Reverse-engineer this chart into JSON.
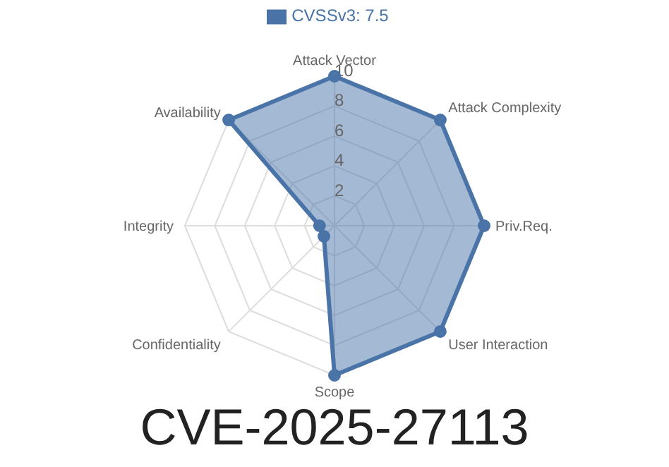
{
  "chart_data": {
    "type": "radar",
    "title": "CVE-2025-27113",
    "categories": [
      "Attack Vector",
      "Attack Complexity",
      "Priv.Req.",
      "User Interaction",
      "Scope",
      "Confidentiality",
      "Integrity",
      "Availability"
    ],
    "series": [
      {
        "name": "CVSSv3: 7.5",
        "color": "#4a74a8",
        "values": [
          10,
          10,
          10,
          10,
          10,
          1,
          1,
          10
        ]
      }
    ],
    "ylim": [
      0,
      10
    ],
    "yticks": [
      2,
      4,
      6,
      8,
      10
    ],
    "grid": true,
    "legend": "top",
    "marker": "circle"
  }
}
